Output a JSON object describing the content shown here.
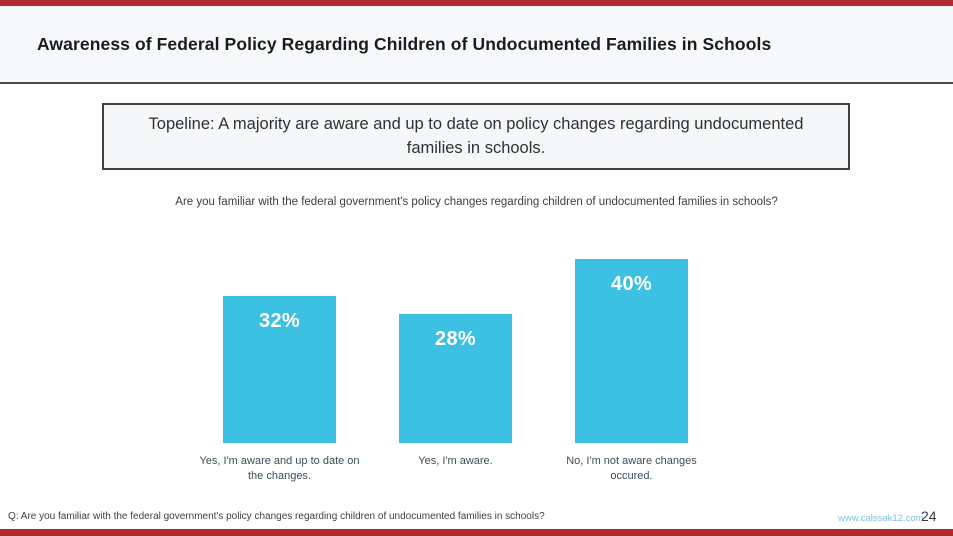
{
  "slide": {
    "title": "Awareness of Federal Policy Regarding Children of Undocumented Families in Schools",
    "topline": "Topeline: A majority are aware and up to date on policy changes regarding undocumented families in schools.",
    "question": "Are you familiar with the federal government's policy changes regarding children of undocumented families in schools?",
    "footer_question": "Q: Are you familiar with the federal government's policy changes regarding children of undocumented families in schools?",
    "website": "www.calssak12.com",
    "page_number": "24"
  },
  "colors": {
    "accent_red": "#b02a30",
    "header_bg": "#f7f8f9",
    "bar_cyan": "#3cc1e3",
    "category_label": "#3c4e57",
    "link_blue": "#7cc3e0"
  },
  "chart_data": {
    "type": "bar",
    "title": "Are you familiar with the federal government's policy changes regarding children of undocumented families in schools?",
    "categories": [
      "Yes, I'm aware and up to date on the changes.",
      "Yes, I'm aware.",
      "No, I'm not aware changes occured."
    ],
    "values": [
      32,
      28,
      40
    ],
    "value_labels": [
      "32%",
      "28%",
      "40%"
    ],
    "xlabel": "",
    "ylabel": "",
    "ylim": [
      0,
      45
    ],
    "bar_color": "#3cc1e3",
    "value_label_position": "inside-top",
    "value_label_color": "#ffffff",
    "grid": false,
    "axes_visible": false,
    "legend": false
  }
}
